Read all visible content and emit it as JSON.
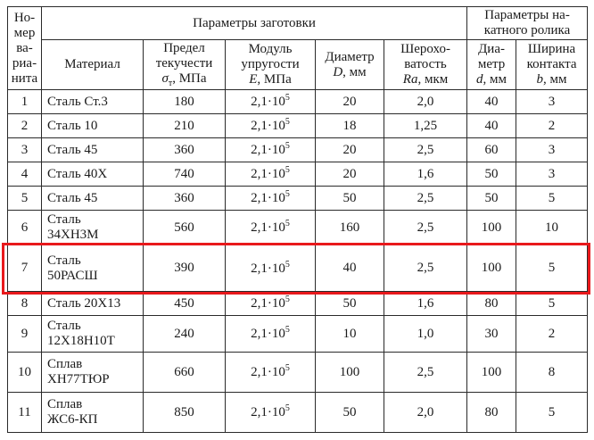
{
  "table": {
    "header": {
      "variant": "Но-\nмер\nва-\nриа-\nнита",
      "group_workpiece": "Параметры заготовки",
      "group_roller": "Параметры на-\nкатного ролика",
      "material": "Материал",
      "yield": {
        "lines": "Предел\nтекучести",
        "sym": "σ",
        "sub": "т",
        "unit": ", МПа"
      },
      "modulus": {
        "lines": "Модуль\nупругости",
        "sym": "E",
        "unit": ", МПа"
      },
      "diameter": {
        "lines": "Диаметр",
        "sym": "D",
        "unit": ", мм"
      },
      "roughness": {
        "lines": "Шерохо-\nватость",
        "sym": "Ra",
        "unit": ", мкм"
      },
      "roller_diameter": {
        "lines": "Диа-\nметр",
        "sym": "d",
        "unit": ", мм"
      },
      "contact_width": {
        "lines": "Ширина\nконтакта",
        "sym": "b",
        "unit": ", мм"
      }
    },
    "rows": [
      {
        "num": "1",
        "material": "Сталь Ст.3",
        "yield_strength": "180",
        "modulus_base": "2,1·10",
        "modulus_exp": "5",
        "diameter": "20",
        "roughness": "2,0",
        "roller_diameter": "40",
        "contact_width": "3"
      },
      {
        "num": "2",
        "material": "Сталь 10",
        "yield_strength": "210",
        "modulus_base": "2,1·10",
        "modulus_exp": "5",
        "diameter": "18",
        "roughness": "1,25",
        "roller_diameter": "40",
        "contact_width": "2"
      },
      {
        "num": "3",
        "material": "Сталь 45",
        "yield_strength": "360",
        "modulus_base": "2,1·10",
        "modulus_exp": "5",
        "diameter": "20",
        "roughness": "2,5",
        "roller_diameter": "60",
        "contact_width": "3"
      },
      {
        "num": "4",
        "material": "Сталь 40Х",
        "yield_strength": "740",
        "modulus_base": "2,1·10",
        "modulus_exp": "5",
        "diameter": "20",
        "roughness": "1,6",
        "roller_diameter": "50",
        "contact_width": "3"
      },
      {
        "num": "5",
        "material": "Сталь 45",
        "yield_strength": "360",
        "modulus_base": "2,1·10",
        "modulus_exp": "5",
        "diameter": "50",
        "roughness": "2,5",
        "roller_diameter": "50",
        "contact_width": "5"
      },
      {
        "num": "6",
        "material": "Сталь\n34ХН3М",
        "yield_strength": "560",
        "modulus_base": "2,1·10",
        "modulus_exp": "5",
        "diameter": "160",
        "roughness": "2,5",
        "roller_diameter": "100",
        "contact_width": "10"
      },
      {
        "num": "7",
        "material": "Сталь\n50РАСШ",
        "yield_strength": "390",
        "modulus_base": "2,1·10",
        "modulus_exp": "5",
        "diameter": "40",
        "roughness": "2,5",
        "roller_diameter": "100",
        "contact_width": "5"
      },
      {
        "num": "8",
        "material": "Сталь 20Х13",
        "yield_strength": "450",
        "modulus_base": "2,1·10",
        "modulus_exp": "5",
        "diameter": "50",
        "roughness": "1,6",
        "roller_diameter": "80",
        "contact_width": "5"
      },
      {
        "num": "9",
        "material": "Сталь\n12Х18Н10Т",
        "yield_strength": "240",
        "modulus_base": "2,1·10",
        "modulus_exp": "5",
        "diameter": "10",
        "roughness": "1,0",
        "roller_diameter": "30",
        "contact_width": "2"
      },
      {
        "num": "10",
        "material": "Сплав\nХН77ТЮР",
        "yield_strength": "660",
        "modulus_base": "2,1·10",
        "modulus_exp": "5",
        "diameter": "100",
        "roughness": "2,5",
        "roller_diameter": "100",
        "contact_width": "8"
      },
      {
        "num": "11",
        "material": "Сплав\nЖС6-КП",
        "yield_strength": "850",
        "modulus_base": "2,1·10",
        "modulus_exp": "5",
        "diameter": "50",
        "roughness": "2,0",
        "roller_diameter": "80",
        "contact_width": "5"
      }
    ]
  },
  "highlight": {
    "row": "7",
    "color": "#e8191c"
  }
}
